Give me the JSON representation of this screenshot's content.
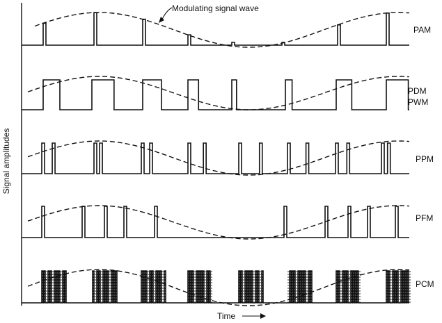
{
  "annotation": "Modulating signal wave",
  "y_axis_label": "Signal amplitudes",
  "x_axis_label": "Time",
  "arrow_glyph": "—→",
  "rows": [
    {
      "label_lines": [
        "PAM"
      ]
    },
    {
      "label_lines": [
        "PDM",
        "PWM"
      ]
    },
    {
      "label_lines": [
        "PPM"
      ]
    },
    {
      "label_lines": [
        "PFM"
      ]
    },
    {
      "label_lines": [
        "PCM"
      ]
    }
  ]
}
